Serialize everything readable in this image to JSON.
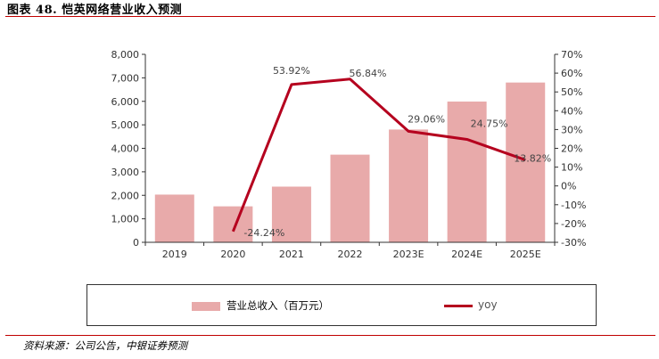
{
  "header": {
    "title": "图表 48. 恺英网络营业收入预测"
  },
  "source": {
    "text": "资料来源：公司公告，中银证券预测"
  },
  "colors": {
    "bar": "#e8aaaa",
    "line": "#b5001e",
    "rule": "#c00000"
  },
  "chart_data": {
    "type": "bar+line",
    "categories": [
      "2019",
      "2020",
      "2021",
      "2022",
      "2023E",
      "2024E",
      "2025E"
    ],
    "series": [
      {
        "name": "营业总收入（百万元）",
        "type": "bar",
        "axis": "left",
        "values": [
          2030,
          1530,
          2370,
          3730,
          4800,
          5990,
          6800
        ]
      },
      {
        "name": "yoy",
        "type": "line",
        "axis": "right",
        "values": [
          null,
          -24.24,
          53.92,
          56.84,
          29.06,
          24.75,
          13.82
        ],
        "labels": [
          "",
          "-24.24%",
          "53.92%",
          "56.84%",
          "29.06%",
          "24.75%",
          "13.82%"
        ]
      }
    ],
    "y_left": {
      "min": 0,
      "max": 8000,
      "step": 1000,
      "ticks": [
        "0",
        "1,000",
        "2,000",
        "3,000",
        "4,000",
        "5,000",
        "6,000",
        "7,000",
        "8,000"
      ]
    },
    "y_right": {
      "min": -30,
      "max": 70,
      "step": 10,
      "ticks": [
        "-30%",
        "-20%",
        "-10%",
        "0%",
        "10%",
        "20%",
        "30%",
        "40%",
        "50%",
        "60%",
        "70%"
      ]
    },
    "grid": false,
    "legend": "bottom"
  }
}
